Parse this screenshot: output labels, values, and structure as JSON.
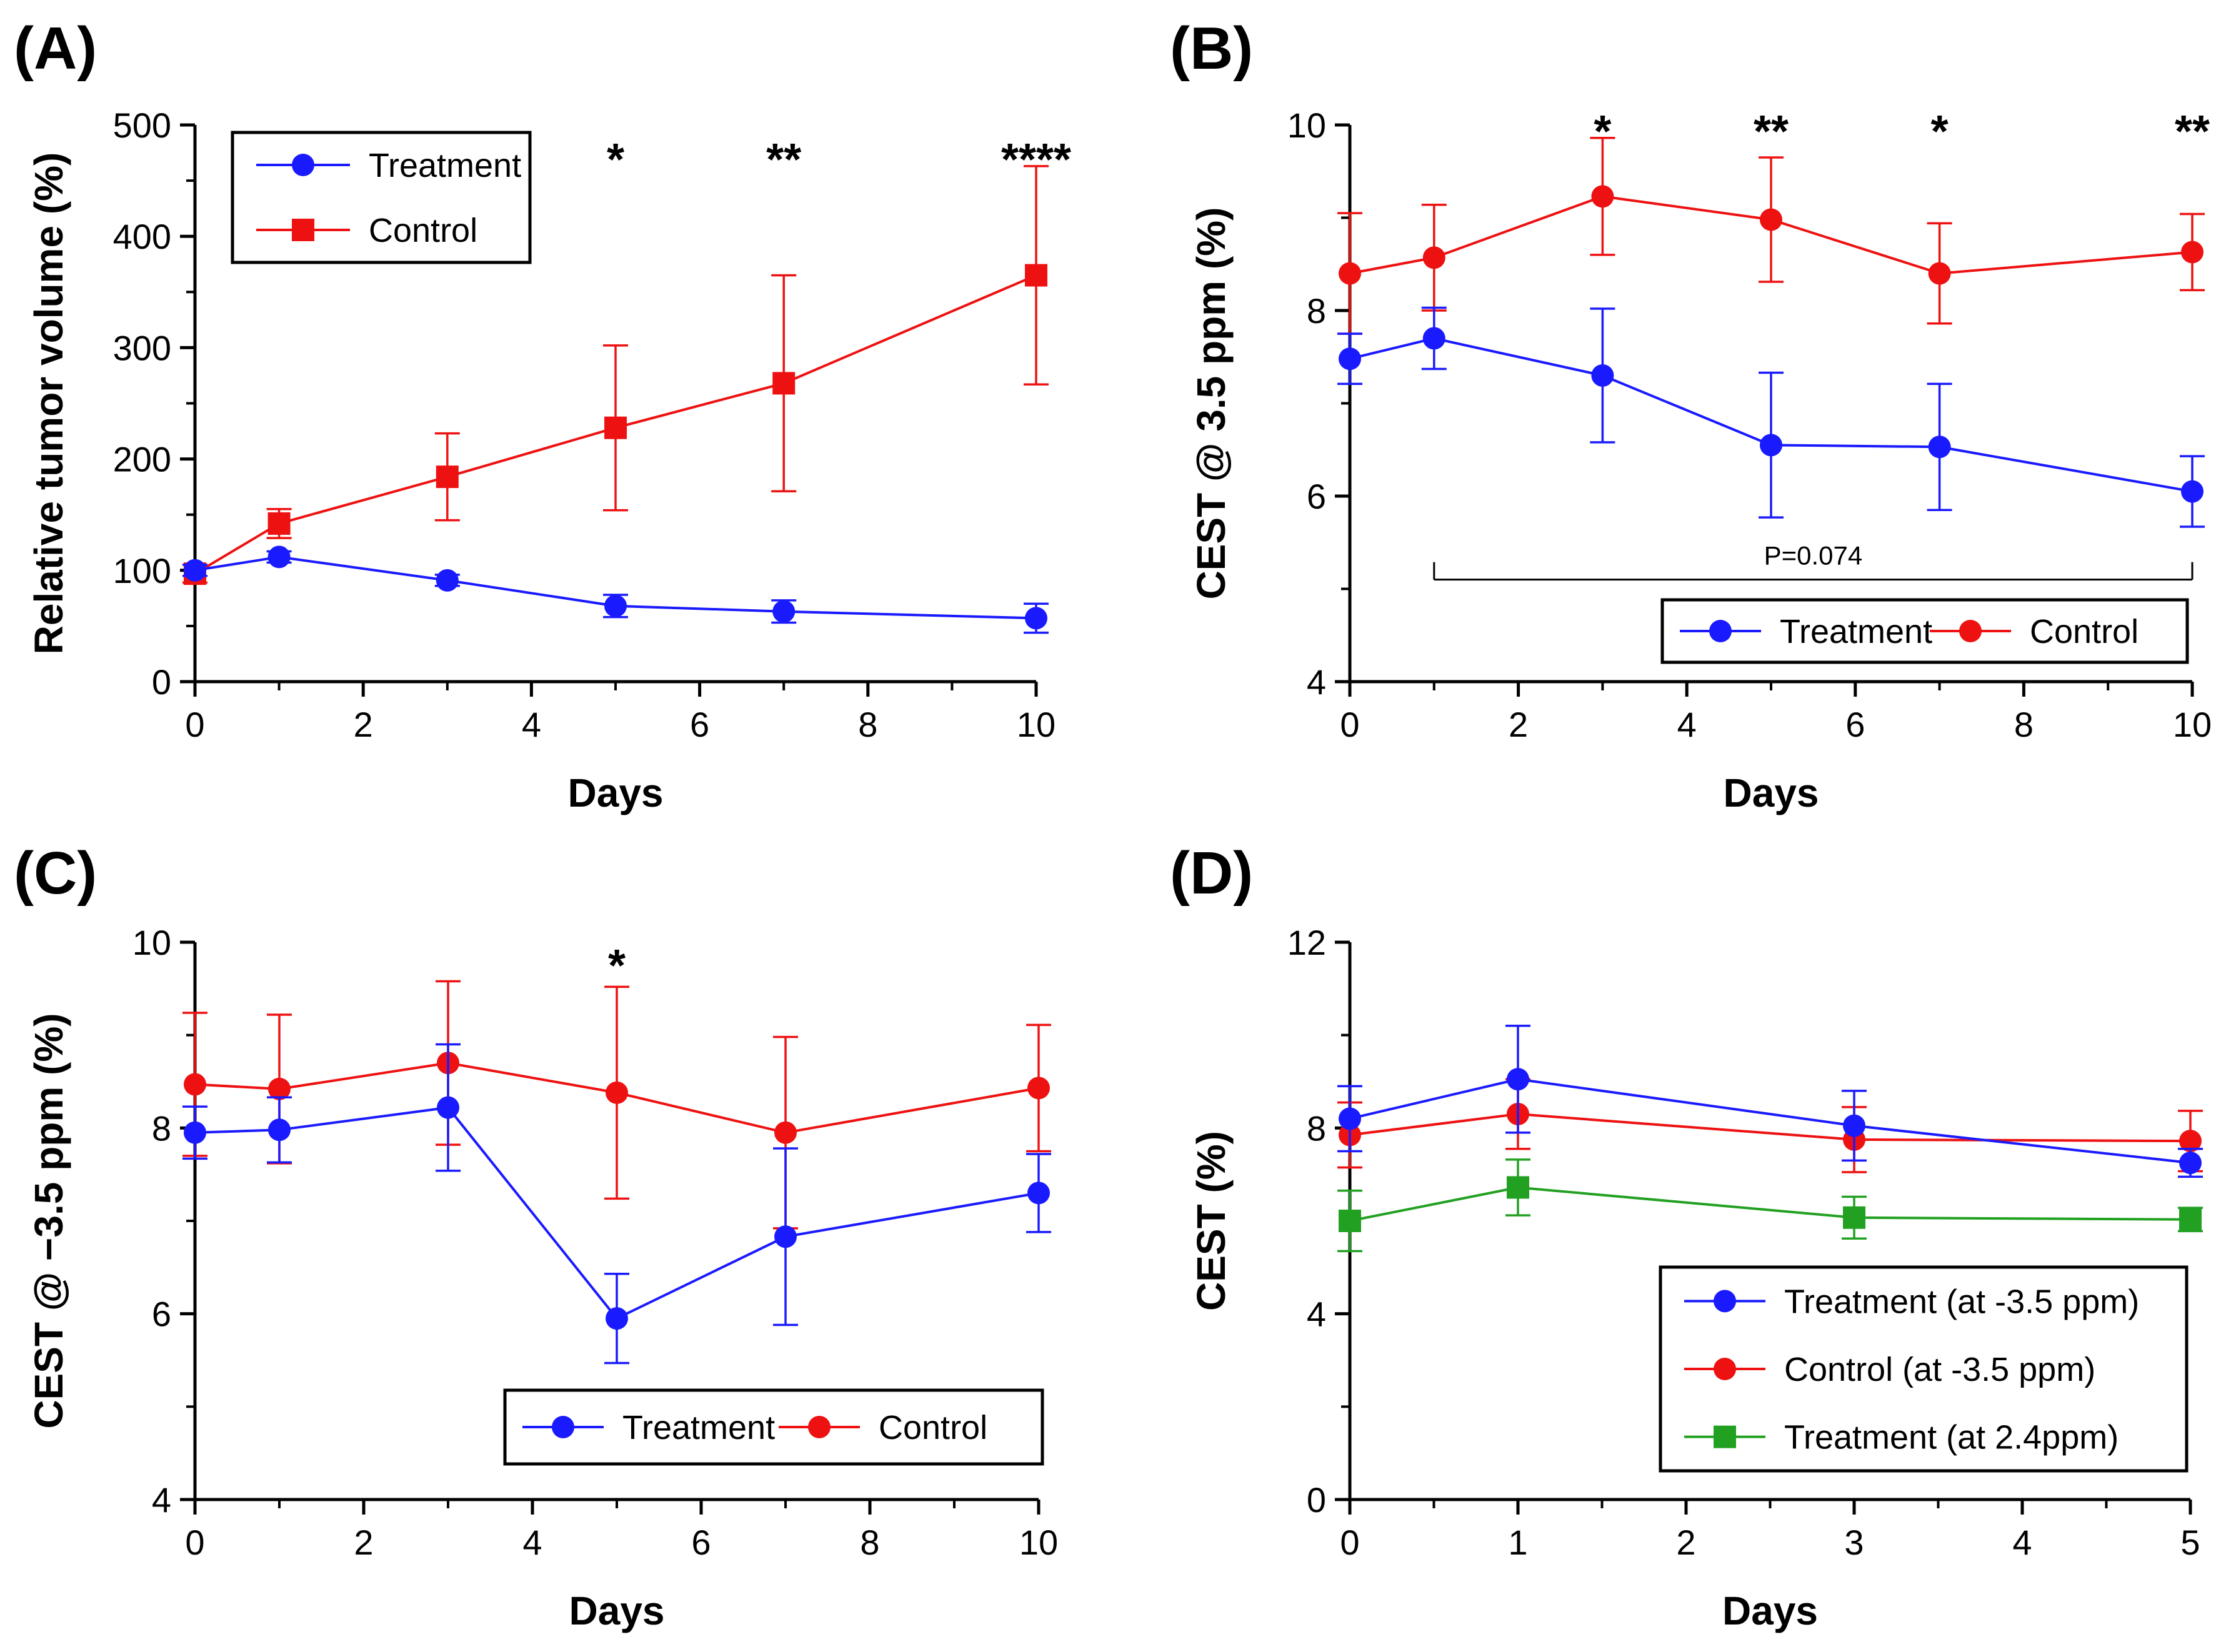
{
  "chart_data": [
    {
      "panel": "(A)",
      "type": "line",
      "xlabel": "Days",
      "ylabel": "Relative tumor volume (%)",
      "xlim": [
        0,
        10
      ],
      "ylim": [
        0,
        500
      ],
      "xticks": [
        0,
        2,
        4,
        6,
        8,
        10
      ],
      "yticks": [
        0,
        100,
        200,
        300,
        400,
        500
      ],
      "grid": false,
      "legend": {
        "position": "top-left",
        "boxed": true
      },
      "series": [
        {
          "name": "Treatment",
          "color": "#1a1aff",
          "marker": "circle",
          "x": [
            0,
            1,
            3,
            5,
            7,
            10
          ],
          "y": [
            100,
            112,
            91,
            68,
            63,
            57
          ],
          "err": [
            5,
            5,
            5,
            10,
            10,
            13
          ]
        },
        {
          "name": "Control",
          "color": "#ee1111",
          "marker": "square",
          "x": [
            0,
            1,
            3,
            5,
            7,
            10
          ],
          "y": [
            97,
            142,
            184,
            228,
            268,
            365
          ],
          "err": [
            8,
            13,
            39,
            74,
            97,
            98
          ]
        }
      ],
      "annotations": [
        {
          "text": "*",
          "x": 5
        },
        {
          "text": "**",
          "x": 7
        },
        {
          "text": "****",
          "x": 10
        }
      ]
    },
    {
      "panel": "(B)",
      "type": "line",
      "xlabel": "Days",
      "ylabel": "CEST @ 3.5 ppm (%)",
      "xlim": [
        0,
        10
      ],
      "ylim": [
        4,
        10
      ],
      "xticks": [
        0,
        2,
        4,
        6,
        8,
        10
      ],
      "yticks": [
        4,
        6,
        8,
        10
      ],
      "grid": false,
      "legend": {
        "position": "bottom-right",
        "boxed": true
      },
      "series": [
        {
          "name": "Treatment",
          "color": "#1a1aff",
          "marker": "circle",
          "x": [
            0,
            1,
            3,
            5,
            7,
            10
          ],
          "y": [
            7.48,
            7.7,
            7.3,
            6.55,
            6.53,
            6.05
          ],
          "err": [
            0.27,
            0.33,
            0.72,
            0.78,
            0.68,
            0.38
          ]
        },
        {
          "name": "Control",
          "color": "#ee1111",
          "marker": "circle",
          "x": [
            0,
            1,
            3,
            5,
            7,
            10
          ],
          "y": [
            8.4,
            8.57,
            9.23,
            8.98,
            8.4,
            8.63
          ],
          "err": [
            0.65,
            0.57,
            0.63,
            0.67,
            0.54,
            0.41
          ]
        }
      ],
      "annotations": [
        {
          "text": "*",
          "x": 3
        },
        {
          "text": "**",
          "x": 5
        },
        {
          "text": "*",
          "x": 7
        },
        {
          "text": "**",
          "x": 10
        }
      ],
      "bracket": {
        "x_from": 1,
        "x_to": 10,
        "y": 5.1,
        "text": "P=0.074"
      }
    },
    {
      "panel": "(C)",
      "type": "line",
      "xlabel": "Days",
      "ylabel": "CEST @ −3.5 ppm (%)",
      "xlim": [
        0,
        10
      ],
      "ylim": [
        4,
        10
      ],
      "xticks": [
        0,
        2,
        4,
        6,
        8,
        10
      ],
      "yticks": [
        4,
        6,
        8,
        10
      ],
      "grid": false,
      "legend": {
        "position": "bottom-right",
        "boxed": true
      },
      "series": [
        {
          "name": "Treatment",
          "color": "#1a1aff",
          "marker": "circle",
          "x": [
            0,
            1,
            3,
            5,
            7,
            10
          ],
          "y": [
            7.95,
            7.98,
            8.22,
            5.95,
            6.83,
            7.3
          ],
          "err": [
            0.28,
            0.35,
            0.68,
            0.48,
            0.95,
            0.42
          ]
        },
        {
          "name": "Control",
          "color": "#ee1111",
          "marker": "circle",
          "x": [
            0,
            1,
            3,
            5,
            7,
            10
          ],
          "y": [
            8.47,
            8.42,
            8.7,
            8.38,
            7.95,
            8.43
          ],
          "err": [
            0.77,
            0.8,
            0.88,
            1.14,
            1.03,
            0.68
          ]
        }
      ],
      "annotations": [
        {
          "text": "*",
          "x": 5
        }
      ]
    },
    {
      "panel": "(D)",
      "type": "line",
      "xlabel": "Days",
      "ylabel": "CEST (%)",
      "xlim": [
        0,
        5
      ],
      "ylim": [
        0,
        12
      ],
      "xticks": [
        0,
        1,
        2,
        3,
        4,
        5
      ],
      "yticks": [
        0,
        4,
        8,
        12
      ],
      "grid": false,
      "legend": {
        "position": "bottom-right",
        "boxed": true
      },
      "series": [
        {
          "name": "Treatment (at -3.5 ppm)",
          "color": "#1a1aff",
          "marker": "circle",
          "x": [
            0,
            1,
            3,
            5
          ],
          "y": [
            8.2,
            9.05,
            8.05,
            7.25
          ],
          "err": [
            0.7,
            1.15,
            0.75,
            0.3
          ]
        },
        {
          "name": "Control (at -3.5 ppm)",
          "color": "#ee1111",
          "marker": "circle",
          "x": [
            0,
            1,
            3,
            5
          ],
          "y": [
            7.85,
            8.3,
            7.75,
            7.72
          ],
          "err": [
            0.7,
            0.75,
            0.7,
            0.65
          ]
        },
        {
          "name": "Treatment (at 2.4ppm)",
          "color": "#22a022",
          "marker": "square",
          "x": [
            0,
            1,
            3,
            5
          ],
          "y": [
            6.0,
            6.72,
            6.07,
            6.03
          ],
          "err": [
            0.65,
            0.6,
            0.45,
            0.25
          ]
        }
      ],
      "annotations": []
    }
  ]
}
